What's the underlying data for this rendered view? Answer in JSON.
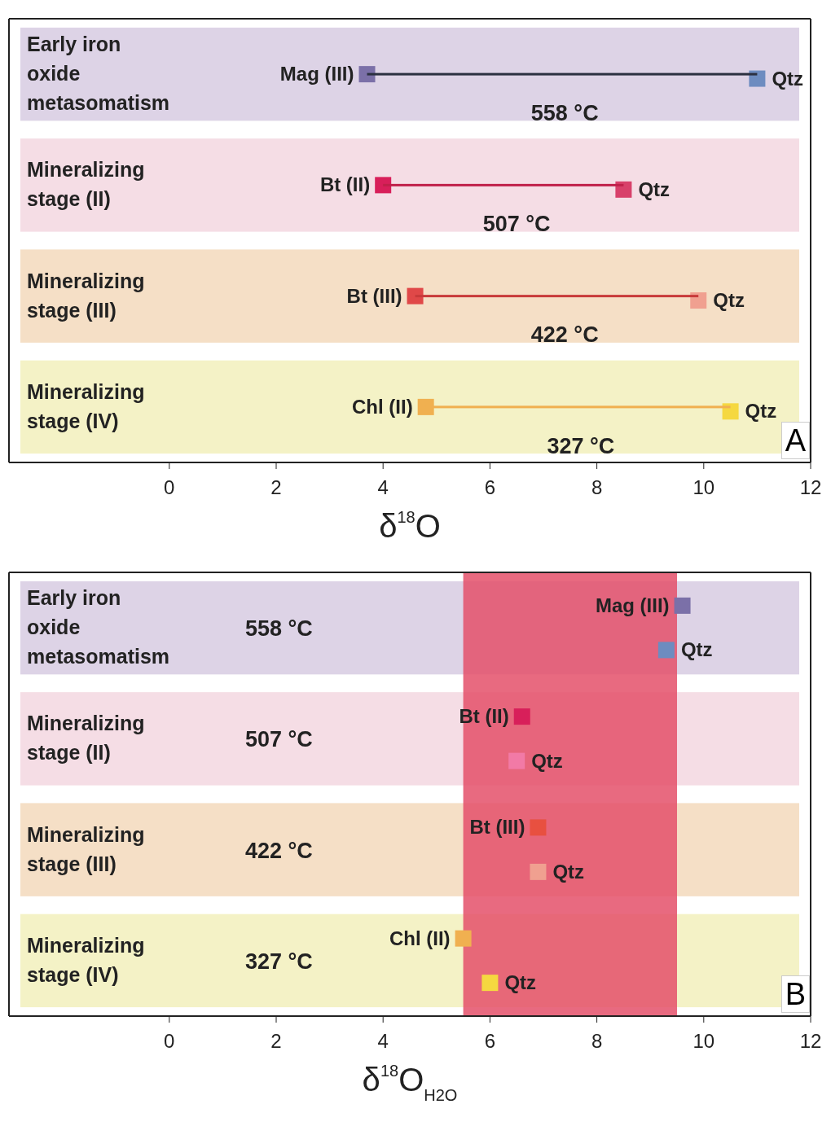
{
  "chart_data": [
    {
      "type": "scatter",
      "orientation": "horizontal",
      "categories": [
        "Early iron oxide metasomatism",
        "Mineralizing stage (II)",
        "Mineralizing stage (III)",
        "Mineralizing stage (IV)"
      ],
      "series": [
        {
          "type": "bar",
          "base": [
            3.7,
            4.0,
            4.6,
            4.8
          ],
          "values": [
            7.3,
            4.5,
            5.3,
            5.7
          ],
          "colors": [
            "#2b3040",
            "#c0204a",
            "#c83a3a",
            "#f0b050"
          ]
        },
        {
          "values": [
            3.7,
            4.0,
            4.6,
            4.8
          ],
          "colors": [
            "#7b70a8",
            "#d81f5a",
            "#e04848",
            "#f0b050"
          ],
          "value_labels": [
            "Mag (III)",
            "Bt (II)",
            "Bt (III)",
            "Chl (II)"
          ]
        },
        {
          "values": [
            11.0,
            8.5,
            9.9,
            10.5
          ],
          "colors": [
            "#6d8cc0",
            "#d8406a",
            "#f0a090",
            "#f5d840"
          ],
          "value_labels": [
            "Qtz",
            "Qtz",
            "Qtz",
            "Qtz"
          ]
        }
      ],
      "xlim": [
        -3,
        12
      ],
      "xticks": [
        0,
        2,
        4,
        6,
        8,
        10,
        12
      ],
      "xlabel": "δ$^{18}$O",
      "marker": "square",
      "annotations": [
        {
          "text": "558 °C",
          "x": 7.4,
          "y": "Early iron oxide metasomatism"
        },
        {
          "text": "507 °C",
          "x": 6.5,
          "y": "Mineralizing stage (II)"
        },
        {
          "text": "422 °C",
          "x": 7.4,
          "y": "Mineralizing stage (III)"
        },
        {
          "text": "327 °C",
          "x": 7.7,
          "y": "Mineralizing stage (IV)"
        },
        "A"
      ]
    },
    {
      "type": "scatter",
      "orientation": "horizontal",
      "categories": [
        "Early iron oxide metasomatism",
        "Mineralizing stage (II)",
        "Mineralizing stage (III)",
        "Mineralizing stage (IV)"
      ],
      "series": [
        {
          "values": [
            9.6,
            6.6,
            6.9,
            5.5
          ],
          "colors": [
            "#7b70a8",
            "#d81f5a",
            "#e85040",
            "#f0b050"
          ],
          "value_labels": [
            "Mag (III)",
            "Bt (II)",
            "Bt (III)",
            "Chl (II)"
          ]
        },
        {
          "values": [
            9.3,
            6.5,
            6.9,
            6.0
          ],
          "colors": [
            "#6d8cc0",
            "#f27aa6",
            "#f0a090",
            "#f5d840"
          ],
          "value_labels": [
            "Qtz",
            "Qtz",
            "Qtz",
            "Qtz"
          ]
        }
      ],
      "bands": [
        {
          "axis": "x",
          "from": 5.5,
          "to": 9.5,
          "color": "#e4506a"
        }
      ],
      "xlim": [
        -3,
        12
      ],
      "xticks": [
        0,
        2,
        4,
        6,
        8,
        10,
        12
      ],
      "xlabel": "δ$^{18}$O$_{H2O}$",
      "marker": "square",
      "annotations": [
        "558 °C",
        "507 °C",
        "422 °C",
        "327 °C",
        "B"
      ]
    }
  ]
}
